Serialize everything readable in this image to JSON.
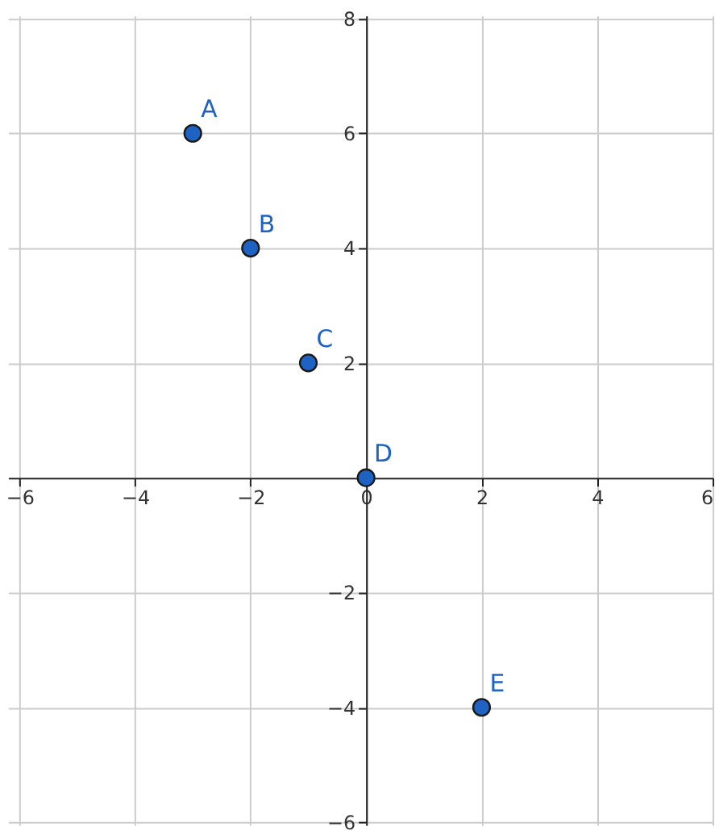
{
  "chart_data": {
    "type": "scatter",
    "x": [
      -3,
      -2,
      -1,
      0,
      2
    ],
    "series": [
      {
        "color": "#1e63c4",
        "values": [
          6,
          4,
          2,
          0,
          -4
        ]
      }
    ],
    "annotations": [
      {
        "text": "A",
        "x": -3,
        "y": 6
      },
      {
        "text": "B",
        "x": -2,
        "y": 4
      },
      {
        "text": "C",
        "x": -1,
        "y": 2
      },
      {
        "text": "D",
        "x": 0,
        "y": 0
      },
      {
        "text": "E",
        "x": 2,
        "y": -4
      }
    ],
    "xlim": [
      -6.2,
      6
    ],
    "ylim": [
      -6.05,
      8.05
    ],
    "xticks": [
      -6,
      -4,
      -2,
      0,
      2,
      4,
      6
    ],
    "yticks": [
      -6,
      -4,
      -2,
      2,
      4,
      6,
      8
    ],
    "grid": true,
    "marker": "circle"
  }
}
